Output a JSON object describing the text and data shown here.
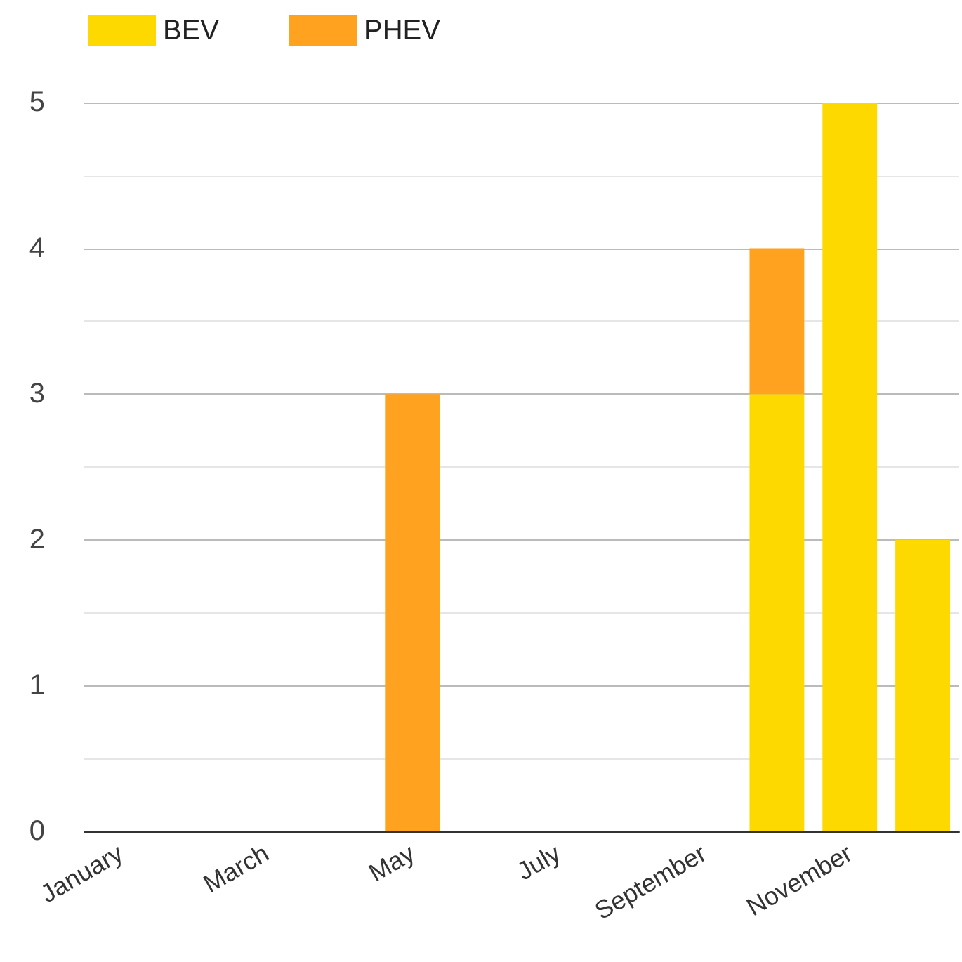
{
  "chart_data": {
    "type": "bar",
    "categories": [
      "January",
      null,
      "March",
      null,
      "May",
      null,
      "July",
      null,
      "September",
      null,
      "November",
      null
    ],
    "series": [
      {
        "name": "BEV",
        "color": "#fdd900",
        "values": [
          0,
          0,
          0,
          0,
          0,
          0,
          0,
          0,
          0,
          3,
          5,
          2
        ]
      },
      {
        "name": "PHEV",
        "color": "#ffa21f",
        "values": [
          0,
          0,
          0,
          0,
          3,
          0,
          0,
          0,
          0,
          1,
          0,
          0
        ]
      }
    ],
    "stacked": true,
    "ylim": [
      0,
      5
    ],
    "yticks": [
      0,
      1,
      2,
      3,
      4,
      5
    ],
    "grid": true,
    "legend": "top left"
  }
}
